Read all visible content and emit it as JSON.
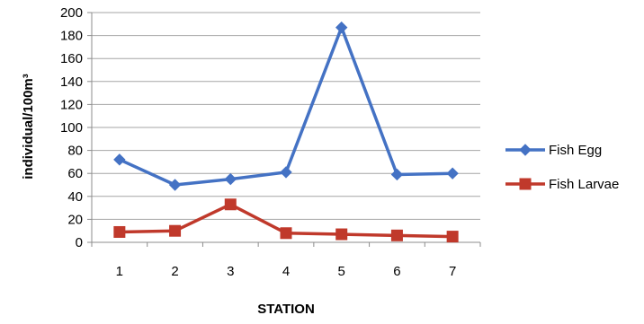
{
  "chart_data": {
    "type": "line",
    "categories": [
      "1",
      "2",
      "3",
      "4",
      "5",
      "6",
      "7"
    ],
    "series": [
      {
        "name": "Fish Egg",
        "values": [
          72,
          50,
          55,
          61,
          187,
          59,
          60
        ],
        "color": "#4472C4",
        "marker": "diamond"
      },
      {
        "name": "Fish Larvae",
        "values": [
          9,
          10,
          33,
          8,
          7,
          6,
          5
        ],
        "color": "#C0392B",
        "marker": "square"
      }
    ],
    "xlabel": "STATION",
    "ylabel": "individual/100m³",
    "ylim": [
      0,
      200
    ],
    "yticks": [
      0,
      20,
      40,
      60,
      80,
      100,
      120,
      140,
      160,
      180,
      200
    ],
    "grid": true,
    "legend_position": "right"
  }
}
